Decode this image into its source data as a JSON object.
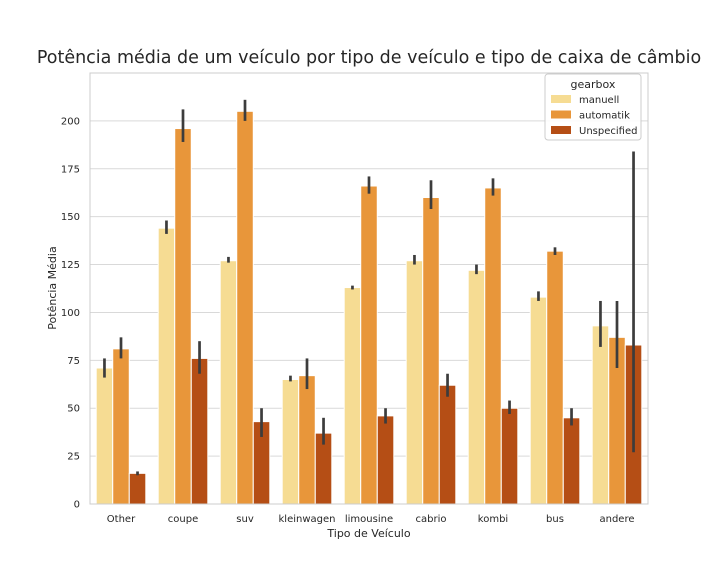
{
  "chart_data": {
    "type": "bar",
    "title": "Potência média de um veículo por tipo de veículo e tipo de caixa de câmbio",
    "xlabel": "Tipo de Veículo",
    "ylabel": "Potência Média",
    "categories": [
      "Other",
      "coupe",
      "suv",
      "kleinwagen",
      "limousine",
      "cabrio",
      "kombi",
      "bus",
      "andere"
    ],
    "ylim": [
      0,
      225
    ],
    "yticks": [
      0,
      25,
      50,
      75,
      100,
      125,
      150,
      175,
      200
    ],
    "grid": true,
    "legend": {
      "title": "gearbox",
      "placement": "top-right"
    },
    "series": [
      {
        "name": "manuell",
        "color": "#f6dc93",
        "values": [
          71,
          144,
          127,
          65,
          113,
          127,
          122,
          108,
          93
        ],
        "err_low": [
          66,
          141,
          126,
          64,
          112,
          125,
          120,
          106,
          82
        ],
        "err_high": [
          76,
          148,
          129,
          67,
          114,
          130,
          125,
          111,
          106
        ]
      },
      {
        "name": "automatik",
        "color": "#e8963a",
        "values": [
          81,
          196,
          205,
          67,
          166,
          160,
          165,
          132,
          87
        ],
        "err_low": [
          76,
          189,
          200,
          60,
          162,
          154,
          161,
          130,
          71
        ],
        "err_high": [
          87,
          206,
          211,
          76,
          171,
          169,
          170,
          134,
          106
        ]
      },
      {
        "name": "Unspecified",
        "color": "#b54e15",
        "values": [
          16,
          76,
          43,
          37,
          46,
          62,
          50,
          45,
          83
        ],
        "err_low": [
          15,
          68,
          35,
          31,
          42,
          56,
          47,
          41,
          27
        ],
        "err_high": [
          17,
          85,
          50,
          45,
          50,
          68,
          54,
          50,
          184
        ]
      }
    ]
  }
}
